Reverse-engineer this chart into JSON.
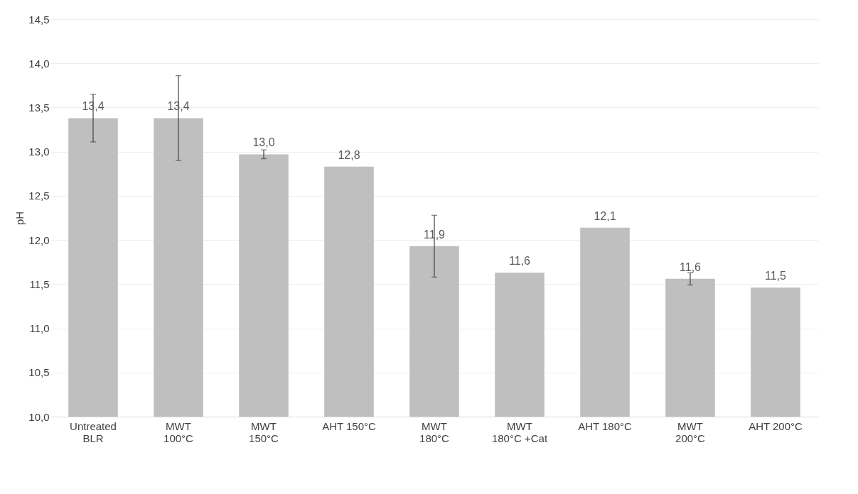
{
  "chart_data": {
    "type": "bar",
    "ylabel": "pH",
    "categories": [
      "Untreated\nBLR",
      "MWT\n100°C",
      "MWT\n150°C",
      "AHT 150°C",
      "MWT\n180°C",
      "MWT\n180°C +Cat",
      "AHT 180°C",
      "MWT\n200°C",
      "AHT 200°C"
    ],
    "values": [
      13.38,
      13.38,
      12.97,
      12.83,
      11.93,
      11.63,
      12.14,
      11.56,
      11.46
    ],
    "errors": [
      0.27,
      0.48,
      0.05,
      null,
      0.35,
      null,
      null,
      0.07,
      null
    ],
    "value_labels": [
      "13,4",
      "13,4",
      "13,0",
      "12,8",
      "11,9",
      "11,6",
      "12,1",
      "11,6",
      "11,5"
    ],
    "color": "#bfbfbf",
    "ylim": [
      10,
      14.5
    ],
    "yticks": [
      {
        "value": 10,
        "label": "10,0"
      },
      {
        "value": 10.5,
        "label": "10,5"
      },
      {
        "value": 11,
        "label": "11,0"
      },
      {
        "value": 11.5,
        "label": "11,5"
      },
      {
        "value": 12,
        "label": "12,0"
      },
      {
        "value": 12.5,
        "label": "12,5"
      },
      {
        "value": 13,
        "label": "13,0"
      },
      {
        "value": 13.5,
        "label": "13,5"
      },
      {
        "value": 14,
        "label": "14,0"
      },
      {
        "value": 14.5,
        "label": "14,5"
      }
    ],
    "grid": "y"
  }
}
